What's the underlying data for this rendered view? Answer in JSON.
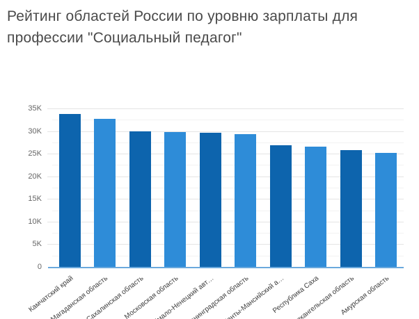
{
  "title": "Рейтинг областей России по уровню зарплаты для профессии \"Социальный педагог\"",
  "chart_data": {
    "type": "bar",
    "title": "Рейтинг областей России по уровню зарплаты для профессии \"Социальный педагог\"",
    "categories": [
      "Камчатский край",
      "Магаданская область",
      "Сахалинская область",
      "Московская область",
      "Ямало-Ненецкий авт…",
      "Ленинградская область",
      "Ханты-Мансийский а…",
      "Республика Саха",
      "Архангельская область",
      "Амурская область"
    ],
    "values": [
      34000,
      32900,
      30100,
      29900,
      29800,
      29500,
      27000,
      26700,
      25900,
      25300
    ],
    "xlabel": "",
    "ylabel": "",
    "ylim": [
      0,
      35000
    ],
    "y_tick_step": 5000,
    "minor_grid_step": 2500,
    "y_tick_labels": [
      "0",
      "5K",
      "10K",
      "15K",
      "20K",
      "25K",
      "30K",
      "35K"
    ],
    "legend": "none",
    "grid": "horizontal",
    "bar_colors_alternating": [
      "#0d64ad",
      "#2e8cd8"
    ],
    "axis_line_color": "#6aa9dd",
    "title_color": "#4a4a4a",
    "background_color": "#ffffff"
  }
}
